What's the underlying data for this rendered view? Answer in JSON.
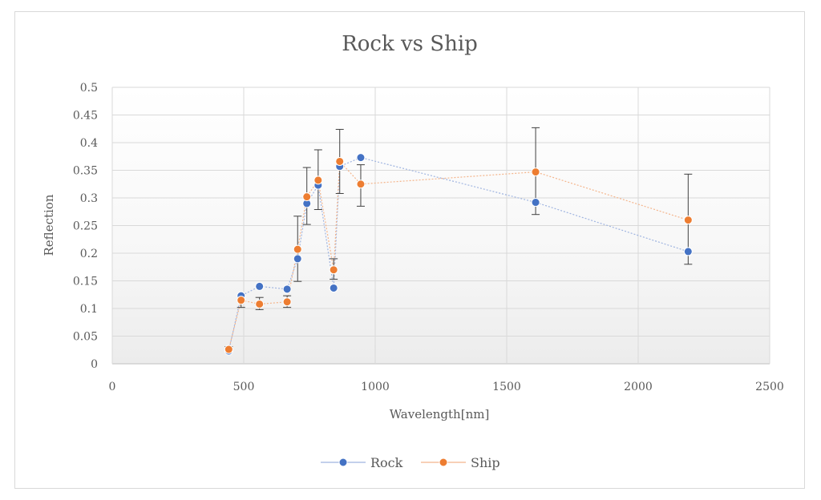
{
  "chart_data": {
    "type": "scatter",
    "title": "Rock vs Ship",
    "xlabel": "Wavelength[nm]",
    "ylabel": "Reflection",
    "xlim": [
      0,
      2500
    ],
    "ylim": [
      0,
      0.5
    ],
    "x_ticks": [
      "0",
      "500",
      "1000",
      "1500",
      "2000",
      "2500"
    ],
    "y_ticks": [
      "0",
      "0.05",
      "0.1",
      "0.15",
      "0.2",
      "0.25",
      "0.3",
      "0.35",
      "0.4",
      "0.45",
      "0.5"
    ],
    "grid": true,
    "legend_position": "bottom",
    "series": [
      {
        "name": "Rock",
        "color": "#4472c4",
        "line_color": "#9fb4e0",
        "x": [
          443,
          490,
          560,
          665,
          705,
          740,
          783,
          842,
          865,
          945,
          1610,
          2190
        ],
        "y": [
          0.023,
          0.123,
          0.14,
          0.135,
          0.19,
          0.29,
          0.323,
          0.137,
          0.357,
          0.373,
          0.292,
          0.203
        ]
      },
      {
        "name": "Ship",
        "color": "#ed7d31",
        "line_color": "#f4b58c",
        "x": [
          443,
          490,
          560,
          665,
          705,
          740,
          783,
          842,
          865,
          945,
          1610,
          2190
        ],
        "y": [
          0.026,
          0.115,
          0.108,
          0.112,
          0.207,
          0.302,
          0.332,
          0.17,
          0.366,
          0.325,
          0.347,
          0.26
        ],
        "error_plus": [
          0.005,
          0.007,
          0.012,
          0.011,
          0.06,
          0.053,
          0.055,
          0.02,
          0.058,
          0.035,
          0.08,
          0.083
        ],
        "error_minus": [
          0.005,
          0.013,
          0.01,
          0.01,
          0.058,
          0.05,
          0.053,
          0.017,
          0.058,
          0.04,
          0.077,
          0.08
        ]
      }
    ]
  }
}
